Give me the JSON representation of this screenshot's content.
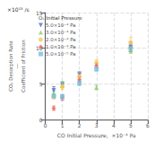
{
  "chart_data": {
    "type": "scatter",
    "xlabel": "CO Initial Pressure,  ×10⁻⁴ Pa",
    "ylabel": "CO₂ Desorption Rate\n―\nCoefficient of Friction",
    "annotations": [
      "×10¹³ /s"
    ],
    "legend_title": "O₂ Initial Pressure",
    "legend": "upper left",
    "grid": true,
    "xlim": [
      0,
      6
    ],
    "ylim": [
      0,
      15
    ],
    "xticks": [
      0,
      1,
      2,
      3,
      4,
      5,
      6
    ],
    "yticks": [
      0,
      5,
      10,
      15
    ],
    "series": [
      {
        "name": "5.0×10⁻⁴ Pa",
        "marker": "triangle-down",
        "x": [
          0.5,
          1.0,
          2.0,
          5.0
        ],
        "values": [
          4.1,
          4.9,
          6.3,
          10.2
        ],
        "yerr": [
          0.5,
          0.4,
          0.4,
          0.7
        ]
      },
      {
        "name": "3.0×10⁻⁴ Pa",
        "marker": "triangle-up",
        "x": [
          0.5,
          1.0,
          3.0,
          5.0
        ],
        "values": [
          3.6,
          5.0,
          4.5,
          9.8
        ],
        "yerr": [
          0.4,
          0.3,
          0.3,
          0.5
        ]
      },
      {
        "name": "2.0×10⁻⁴ Pa",
        "marker": "circle",
        "x": [
          0.5,
          1.0,
          2.0,
          3.0,
          5.0
        ],
        "values": [
          3.2,
          4.6,
          6.1,
          8.0,
          10.8
        ],
        "yerr": [
          0.3,
          0.4,
          0.5,
          0.4,
          0.7
        ]
      },
      {
        "name": "1.0×10⁻⁴ Pa",
        "marker": "diamond",
        "x": [
          0.5,
          1.0,
          2.0,
          3.0,
          5.0
        ],
        "values": [
          1.6,
          3.1,
          5.6,
          7.6,
          10.1
        ],
        "yerr": [
          0.3,
          0.4,
          0.4,
          0.3,
          0.6
        ]
      },
      {
        "name": "5.0×10⁻⁵ Pa",
        "marker": "square",
        "x": [
          0.5,
          1.0,
          2.0,
          3.0,
          5.0
        ],
        "values": [
          3.3,
          3.2,
          5.1,
          7.1,
          10.0
        ],
        "yerr": [
          0.3,
          0.3,
          0.3,
          0.3,
          0.4
        ]
      }
    ]
  }
}
